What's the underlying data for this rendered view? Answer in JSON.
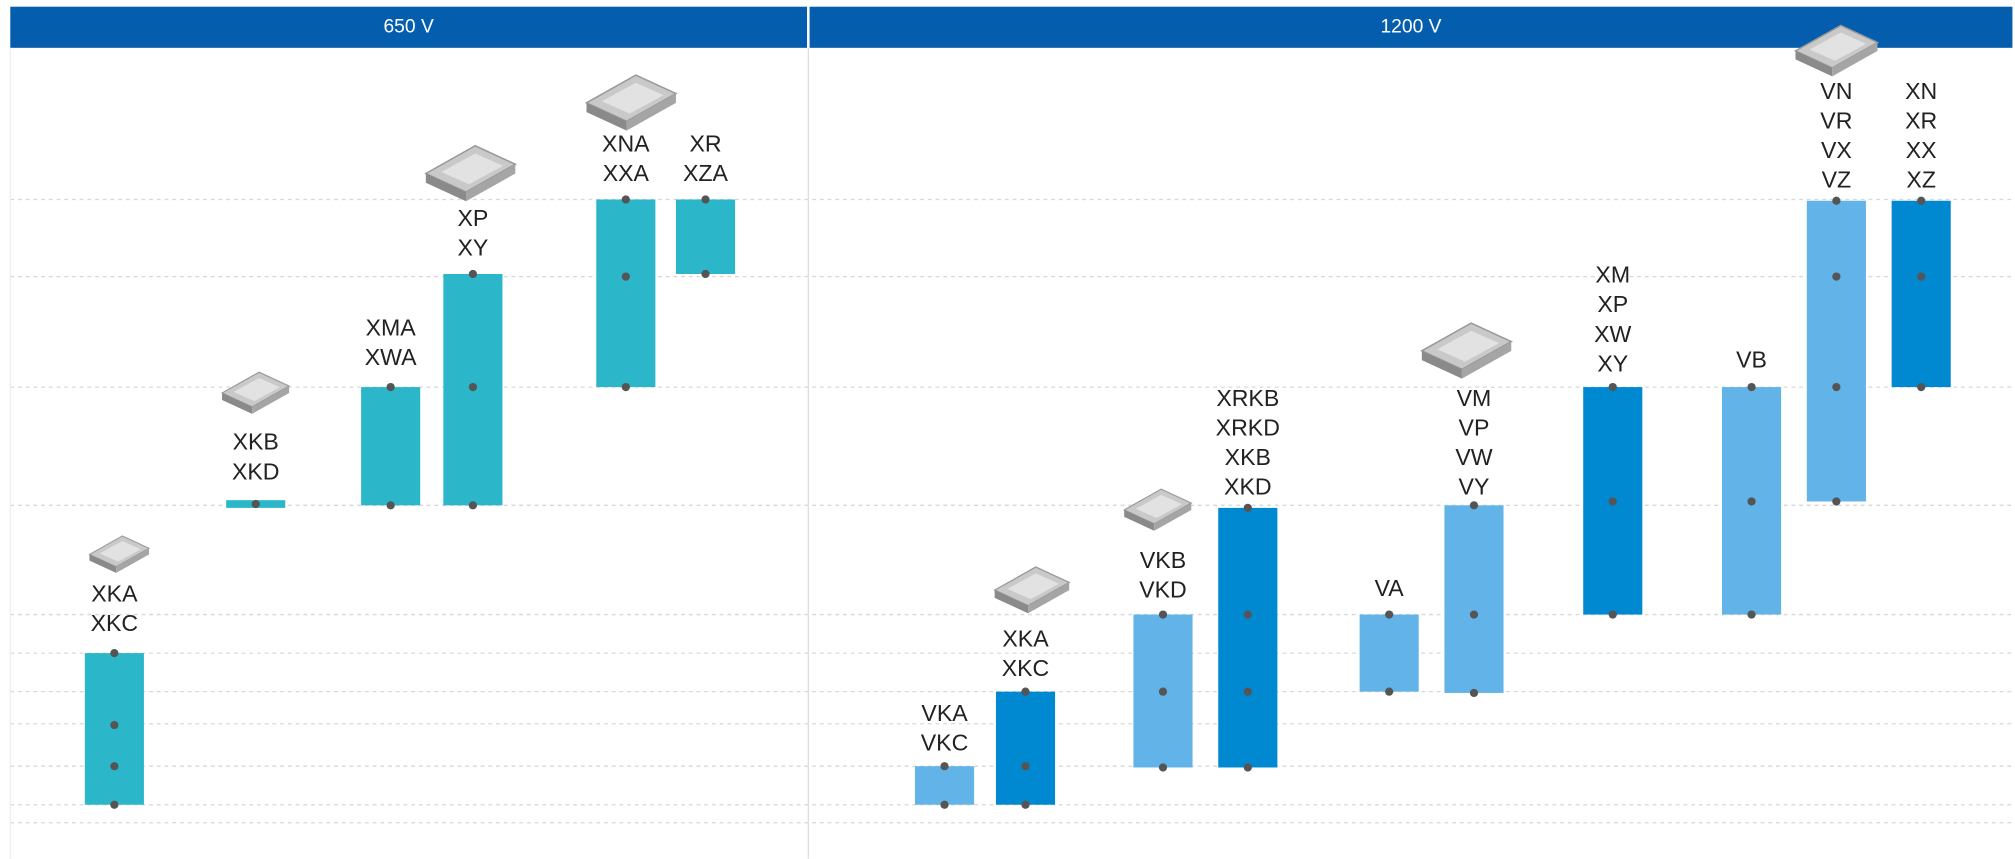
{
  "panels": [
    {
      "title": "650 V",
      "items": [
        {
          "labels": [
            "XKA",
            "XKC"
          ]
        },
        {
          "labels": [
            "XKB",
            "XKD"
          ]
        },
        {
          "labels": [
            "XMA",
            "XWA"
          ]
        },
        {
          "labels": [
            "XP",
            "XY"
          ]
        },
        {
          "labels": [
            "XNA",
            "XXA"
          ]
        },
        {
          "labels": [
            "XR",
            "XZA"
          ]
        }
      ]
    },
    {
      "title": "1200 V",
      "items": [
        {
          "labels": [
            "VKA",
            "VKC"
          ]
        },
        {
          "labels": [
            "XKA",
            "XKC"
          ]
        },
        {
          "labels": [
            "VKB",
            "VKD"
          ]
        },
        {
          "labels": [
            "XRKB",
            "XRKD",
            "XKB",
            "XKD"
          ]
        },
        {
          "labels": [
            "VA"
          ]
        },
        {
          "labels": [
            "VM",
            "VP",
            "VW",
            "VY"
          ]
        },
        {
          "labels": [
            "XM",
            "XP",
            "XW",
            "XY"
          ]
        },
        {
          "labels": [
            "VB"
          ]
        },
        {
          "labels": [
            "VN",
            "VR",
            "VX",
            "VZ"
          ]
        },
        {
          "labels": [
            "XN",
            "XR",
            "XX",
            "XZ"
          ]
        }
      ]
    }
  ]
}
